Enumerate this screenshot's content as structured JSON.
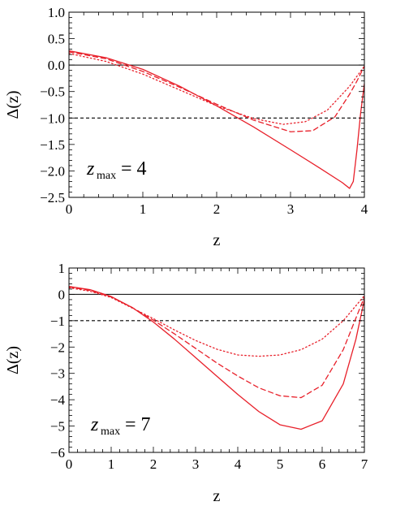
{
  "chart_data": [
    {
      "type": "line",
      "xlabel": "z",
      "ylabel": "Δ(z)",
      "xlim": [
        0,
        4
      ],
      "ylim": [
        -2.5,
        1.0
      ],
      "xticks": [
        0,
        1,
        2,
        3,
        4
      ],
      "xtick_labels": [
        "0",
        "1",
        "2",
        "3",
        "4"
      ],
      "yticks": [
        1.0,
        0.5,
        0.0,
        -0.5,
        -1.0,
        -1.5,
        -2.0,
        -2.5
      ],
      "ytick_labels": [
        "1.0",
        "0.5",
        "0.0",
        "−0.5",
        "−1.0",
        "−1.5",
        "−2.0",
        "−2.5"
      ],
      "annotation": {
        "symbol": "z",
        "subscript": "max",
        "rest": "= 4"
      },
      "reference_lines": [
        {
          "y": 0,
          "style": "solid",
          "color": "#000000"
        },
        {
          "y": -1,
          "style": "dashed",
          "color": "#000000"
        }
      ],
      "series": [
        {
          "style": "solid",
          "color": "#e8202a",
          "x": [
            0,
            0.5,
            1.0,
            1.5,
            2.0,
            2.5,
            3.0,
            3.4,
            3.7,
            3.8,
            3.85,
            3.9,
            3.95,
            4.0
          ],
          "y": [
            0.27,
            0.14,
            -0.08,
            -0.4,
            -0.77,
            -1.17,
            -1.6,
            -1.95,
            -2.22,
            -2.33,
            -2.2,
            -1.6,
            -0.9,
            -0.35
          ]
        },
        {
          "style": "dashed",
          "color": "#e8202a",
          "x": [
            0,
            0.5,
            1.0,
            1.5,
            2.0,
            2.5,
            3.0,
            3.3,
            3.6,
            3.8,
            3.9,
            4.0
          ],
          "y": [
            0.25,
            0.12,
            -0.12,
            -0.42,
            -0.74,
            -1.04,
            -1.26,
            -1.24,
            -0.98,
            -0.55,
            -0.3,
            -0.02
          ]
        },
        {
          "style": "dotted",
          "color": "#e8202a",
          "x": [
            0,
            0.5,
            1.0,
            1.5,
            2.0,
            2.5,
            2.9,
            3.2,
            3.5,
            3.8,
            4.0
          ],
          "y": [
            0.22,
            0.07,
            -0.17,
            -0.47,
            -0.77,
            -1.01,
            -1.12,
            -1.07,
            -0.85,
            -0.4,
            -0.02
          ]
        }
      ]
    },
    {
      "type": "line",
      "xlabel": "z",
      "ylabel": "Δ(z)",
      "xlim": [
        0,
        7
      ],
      "ylim": [
        -6,
        1
      ],
      "xticks": [
        0,
        1,
        2,
        3,
        4,
        5,
        6,
        7
      ],
      "xtick_labels": [
        "0",
        "1",
        "2",
        "3",
        "4",
        "5",
        "6",
        "7"
      ],
      "yticks": [
        1,
        0,
        -1,
        -2,
        -3,
        -4,
        -5,
        -6
      ],
      "ytick_labels": [
        "1",
        "0",
        "−1",
        "−2",
        "−3",
        "−4",
        "−5",
        "−6"
      ],
      "annotation": {
        "symbol": "z",
        "subscript": "max",
        "rest": "= 7"
      },
      "reference_lines": [
        {
          "y": 0,
          "style": "solid",
          "color": "#000000"
        },
        {
          "y": -1,
          "style": "dashed",
          "color": "#000000"
        }
      ],
      "series": [
        {
          "style": "solid",
          "color": "#e8202a",
          "x": [
            0,
            0.5,
            1.0,
            1.5,
            2.0,
            2.5,
            3.0,
            3.5,
            4.0,
            4.5,
            5.0,
            5.5,
            6.0,
            6.5,
            6.8,
            7.0
          ],
          "y": [
            0.3,
            0.18,
            -0.08,
            -0.5,
            -1.05,
            -1.7,
            -2.4,
            -3.1,
            -3.8,
            -4.45,
            -4.95,
            -5.12,
            -4.8,
            -3.4,
            -1.7,
            -0.2
          ]
        },
        {
          "style": "dashed",
          "color": "#e8202a",
          "x": [
            0,
            0.5,
            1.0,
            1.5,
            2.0,
            2.5,
            3.0,
            3.5,
            4.0,
            4.5,
            5.0,
            5.5,
            6.0,
            6.5,
            7.0
          ],
          "y": [
            0.28,
            0.15,
            -0.1,
            -0.5,
            -0.98,
            -1.5,
            -2.05,
            -2.6,
            -3.1,
            -3.55,
            -3.85,
            -3.92,
            -3.45,
            -2.1,
            -0.1
          ]
        },
        {
          "style": "dotted",
          "color": "#e8202a",
          "x": [
            0,
            0.5,
            1.0,
            1.5,
            2.0,
            2.5,
            3.0,
            3.5,
            4.0,
            4.5,
            5.0,
            5.5,
            6.0,
            6.5,
            7.0
          ],
          "y": [
            0.25,
            0.12,
            -0.12,
            -0.52,
            -0.92,
            -1.35,
            -1.75,
            -2.08,
            -2.3,
            -2.35,
            -2.3,
            -2.1,
            -1.7,
            -1.0,
            -0.05
          ]
        }
      ]
    }
  ]
}
